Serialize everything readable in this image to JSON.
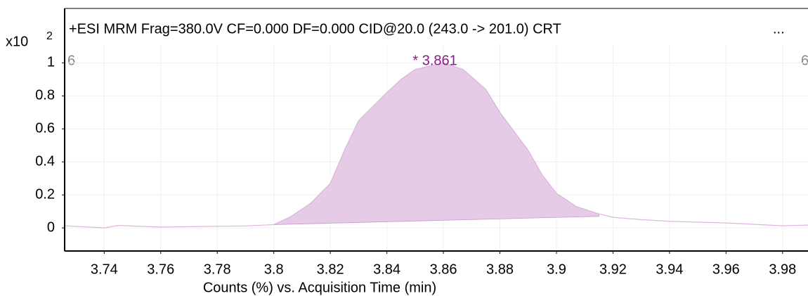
{
  "chart_data": {
    "type": "area",
    "title": "+ESI MRM Frag=380.0V CF=0.000 DF=0.000 CID@20.0 (243.0 -> 201.0) CRT",
    "title_overflow": "...",
    "y_multiplier": "x10",
    "y_exponent": "2",
    "x_label": "Counts (%) vs. Acquisition Time (min)",
    "annotation": "* 3.861",
    "left_marker": "6",
    "right_marker": "6",
    "x": [
      3.726,
      3.74,
      3.745,
      3.76,
      3.78,
      3.79,
      3.8,
      3.806,
      3.813,
      3.82,
      3.825,
      3.83,
      3.84,
      3.845,
      3.85,
      3.86,
      3.867,
      3.875,
      3.88,
      3.89,
      3.895,
      3.9,
      3.907,
      3.915,
      3.92,
      3.93,
      3.94,
      3.96,
      3.98,
      3.989
    ],
    "series": [
      {
        "name": "MRM 243.0 -> 201.0",
        "color": "#dcb6dc",
        "values": [
          0.013,
          0.0,
          0.015,
          0.005,
          0.01,
          0.012,
          0.02,
          0.068,
          0.149,
          0.27,
          0.47,
          0.65,
          0.82,
          0.9,
          0.96,
          1.0,
          0.96,
          0.84,
          0.7,
          0.47,
          0.32,
          0.21,
          0.13,
          0.085,
          0.064,
          0.05,
          0.04,
          0.03,
          0.013,
          0.017
        ]
      }
    ],
    "fill": {
      "color": "#e6cbe6",
      "x_start": 3.8,
      "x_end": 3.915,
      "baseline": [
        0.02,
        0.07
      ]
    },
    "annotation_color": "#8b1a8b",
    "xlim": [
      3.726,
      3.989
    ],
    "ylim": [
      -0.14,
      1.33
    ],
    "xticks": [
      3.74,
      3.76,
      3.78,
      3.8,
      3.82,
      3.84,
      3.86,
      3.88,
      3.9,
      3.92,
      3.94,
      3.96,
      3.98
    ],
    "yticks": [
      0,
      0.2,
      0.4,
      0.6,
      0.8,
      1
    ],
    "grid": true
  }
}
